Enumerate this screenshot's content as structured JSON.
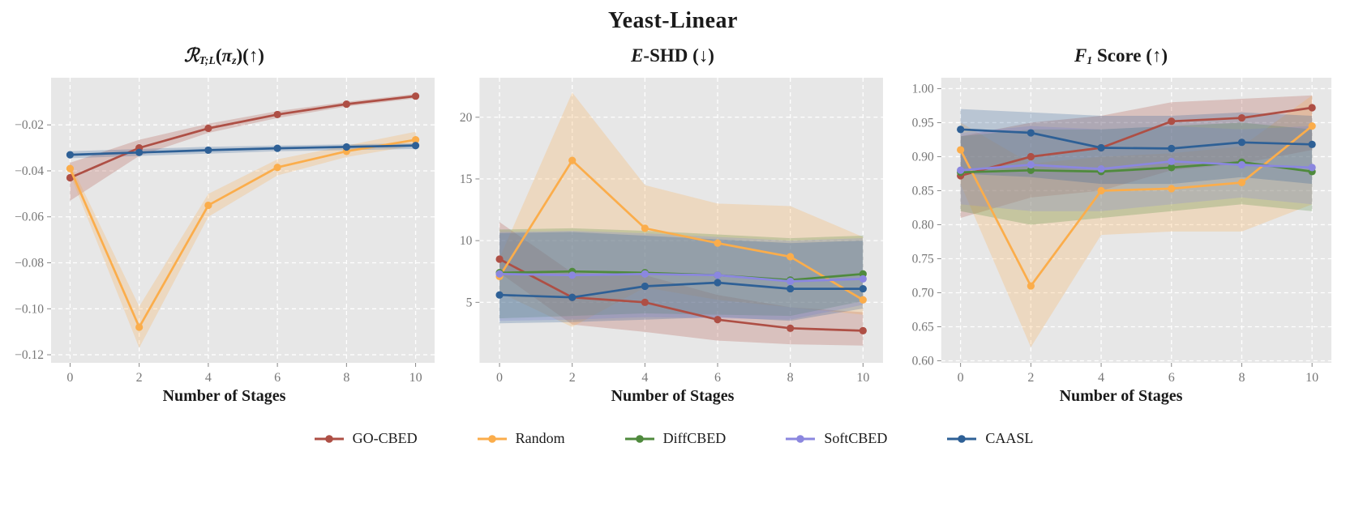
{
  "figure_title": "Yeast-Linear",
  "xlabel": "Number of Stages",
  "colors": {
    "GO-CBED": "#AE4F45",
    "Random": "#FBAD4B",
    "DiffCBED": "#4F8A3D",
    "SoftCBED": "#8B87DF",
    "CAASL": "#2E6096",
    "plot_background": "#E7E7E7",
    "gridline": "#FFFFFF",
    "tick_text": "#777777"
  },
  "legend": [
    {
      "label": "GO-CBED",
      "color": "#AE4F45"
    },
    {
      "label": "Random",
      "color": "#FBAD4B"
    },
    {
      "label": "DiffCBED",
      "color": "#4F8A3D"
    },
    {
      "label": "SoftCBED",
      "color": "#8B87DF"
    },
    {
      "label": "CAASL",
      "color": "#2E6096"
    }
  ],
  "chart_data": [
    {
      "type": "line",
      "id": "reward",
      "title_plain": "R_{T;L}(pi_z)(up)",
      "title_segments": [
        {
          "t": "ℛ",
          "cls": "it"
        },
        {
          "t": "T;L",
          "cls": "sub"
        },
        {
          "t": "(",
          "cls": ""
        },
        {
          "t": "π",
          "cls": "it"
        },
        {
          "t": "z",
          "cls": "sub"
        },
        {
          "t": ")(↑)",
          "cls": ""
        }
      ],
      "xlabel": "Number of Stages",
      "x": [
        0,
        2,
        4,
        6,
        8,
        10
      ],
      "xlim": [
        -0.55,
        10.55
      ],
      "ylim": [
        -0.1235,
        0.0005
      ],
      "xticks": [
        {
          "v": 0,
          "label": "0"
        },
        {
          "v": 2,
          "label": "2"
        },
        {
          "v": 4,
          "label": "4"
        },
        {
          "v": 6,
          "label": "6"
        },
        {
          "v": 8,
          "label": "8"
        },
        {
          "v": 10,
          "label": "10"
        }
      ],
      "yticks": [
        {
          "v": -0.02,
          "label": "−0.02"
        },
        {
          "v": -0.04,
          "label": "−0.04"
        },
        {
          "v": -0.06,
          "label": "−0.06"
        },
        {
          "v": -0.08,
          "label": "−0.08"
        },
        {
          "v": -0.1,
          "label": "−0.10"
        },
        {
          "v": -0.12,
          "label": "−0.12"
        }
      ],
      "series": [
        {
          "name": "GO-CBED",
          "color": "#AE4F45",
          "values": [
            -0.043,
            -0.03,
            -0.0215,
            -0.0155,
            -0.011,
            -0.0075
          ],
          "band_lower": [
            -0.053,
            -0.0335,
            -0.0235,
            -0.017,
            -0.012,
            -0.0085
          ],
          "band_upper": [
            -0.0365,
            -0.0265,
            -0.0195,
            -0.014,
            -0.01,
            -0.0065
          ]
        },
        {
          "name": "Random",
          "color": "#FBAD4B",
          "values": [
            -0.039,
            -0.108,
            -0.055,
            -0.0385,
            -0.0315,
            -0.0265
          ],
          "band_lower": [
            -0.0415,
            -0.117,
            -0.06,
            -0.042,
            -0.034,
            -0.029
          ],
          "band_upper": [
            -0.0365,
            -0.099,
            -0.05,
            -0.035,
            -0.029,
            -0.023
          ]
        },
        {
          "name": "CAASL",
          "color": "#2E6096",
          "values": [
            -0.033,
            -0.032,
            -0.031,
            -0.0302,
            -0.0296,
            -0.029
          ],
          "band_lower": [
            -0.0345,
            -0.0335,
            -0.0325,
            -0.0315,
            -0.031,
            -0.0305
          ],
          "band_upper": [
            -0.0315,
            -0.0305,
            -0.0295,
            -0.029,
            -0.0285,
            -0.028
          ]
        }
      ]
    },
    {
      "type": "line",
      "id": "eshd",
      "title_plain": "E-SHD (down)",
      "title_segments": [
        {
          "t": "E",
          "cls": "it"
        },
        {
          "t": "-SHD (↓)",
          "cls": ""
        }
      ],
      "xlabel": "Number of Stages",
      "x": [
        0,
        2,
        4,
        6,
        8,
        10
      ],
      "xlim": [
        -0.55,
        10.55
      ],
      "ylim": [
        0.1,
        23.2
      ],
      "xticks": [
        {
          "v": 0,
          "label": "0"
        },
        {
          "v": 2,
          "label": "2"
        },
        {
          "v": 4,
          "label": "4"
        },
        {
          "v": 6,
          "label": "6"
        },
        {
          "v": 8,
          "label": "8"
        },
        {
          "v": 10,
          "label": "10"
        }
      ],
      "yticks": [
        {
          "v": 20,
          "label": "20"
        },
        {
          "v": 15,
          "label": "15"
        },
        {
          "v": 10,
          "label": "10"
        },
        {
          "v": 5,
          "label": "5"
        }
      ],
      "series": [
        {
          "name": "GO-CBED",
          "color": "#AE4F45",
          "values": [
            8.5,
            5.4,
            5.0,
            3.6,
            2.9,
            2.7
          ],
          "band_lower": [
            7.4,
            3.2,
            2.6,
            1.9,
            1.6,
            1.5
          ],
          "band_upper": [
            11.5,
            7.4,
            7.2,
            5.6,
            4.6,
            4.2
          ]
        },
        {
          "name": "Random",
          "color": "#FBAD4B",
          "values": [
            7.1,
            16.5,
            11.0,
            9.8,
            8.7,
            5.2
          ],
          "band_lower": [
            5.8,
            3.0,
            6.2,
            5.2,
            4.6,
            4.0
          ],
          "band_upper": [
            8.6,
            22.0,
            14.5,
            13.0,
            12.8,
            10.3
          ]
        },
        {
          "name": "DiffCBED",
          "color": "#4F8A3D",
          "values": [
            7.4,
            7.5,
            7.4,
            7.2,
            6.8,
            7.3
          ],
          "band_lower": [
            3.7,
            3.9,
            4.1,
            4.0,
            3.9,
            5.1
          ],
          "band_upper": [
            10.9,
            11.0,
            10.8,
            10.5,
            10.2,
            10.4
          ]
        },
        {
          "name": "SoftCBED",
          "color": "#8B87DF",
          "values": [
            7.3,
            7.2,
            7.3,
            7.2,
            6.7,
            6.9
          ],
          "band_lower": [
            3.5,
            3.6,
            3.8,
            3.7,
            3.6,
            4.8
          ],
          "band_upper": [
            10.7,
            10.8,
            10.6,
            10.3,
            10.0,
            10.2
          ]
        },
        {
          "name": "CAASL",
          "color": "#2E6096",
          "values": [
            5.6,
            5.4,
            6.3,
            6.6,
            6.1,
            6.1
          ],
          "band_lower": [
            3.3,
            3.4,
            3.6,
            3.8,
            3.5,
            4.5
          ],
          "band_upper": [
            10.6,
            10.7,
            10.4,
            10.1,
            9.8,
            10.0
          ]
        }
      ]
    },
    {
      "type": "line",
      "id": "f1",
      "title_plain": "F_1 Score (up)",
      "title_segments": [
        {
          "t": "F",
          "cls": "it"
        },
        {
          "t": "1",
          "cls": "sub"
        },
        {
          "t": " Score (↑)",
          "cls": ""
        }
      ],
      "xlabel": "Number of Stages",
      "x": [
        0,
        2,
        4,
        6,
        8,
        10
      ],
      "xlim": [
        -0.55,
        10.55
      ],
      "ylim": [
        0.597,
        1.016
      ],
      "xticks": [
        {
          "v": 0,
          "label": "0"
        },
        {
          "v": 2,
          "label": "2"
        },
        {
          "v": 4,
          "label": "4"
        },
        {
          "v": 6,
          "label": "6"
        },
        {
          "v": 8,
          "label": "8"
        },
        {
          "v": 10,
          "label": "10"
        }
      ],
      "yticks": [
        {
          "v": 1.0,
          "label": "1.00"
        },
        {
          "v": 0.95,
          "label": "0.95"
        },
        {
          "v": 0.9,
          "label": "0.90"
        },
        {
          "v": 0.85,
          "label": "0.85"
        },
        {
          "v": 0.8,
          "label": "0.80"
        },
        {
          "v": 0.75,
          "label": "0.75"
        },
        {
          "v": 0.7,
          "label": "0.70"
        },
        {
          "v": 0.65,
          "label": "0.65"
        },
        {
          "v": 0.6,
          "label": "0.60"
        }
      ],
      "series": [
        {
          "name": "GO-CBED",
          "color": "#AE4F45",
          "values": [
            0.872,
            0.9,
            0.913,
            0.952,
            0.957,
            0.972
          ],
          "band_lower": [
            0.81,
            0.84,
            0.85,
            0.88,
            0.89,
            0.91
          ],
          "band_upper": [
            0.93,
            0.95,
            0.96,
            0.98,
            0.985,
            0.99
          ]
        },
        {
          "name": "Random",
          "color": "#FBAD4B",
          "values": [
            0.91,
            0.71,
            0.85,
            0.853,
            0.862,
            0.945
          ],
          "band_lower": [
            0.86,
            0.62,
            0.785,
            0.79,
            0.79,
            0.83
          ],
          "band_upper": [
            0.95,
            0.89,
            0.9,
            0.905,
            0.915,
            0.99
          ]
        },
        {
          "name": "DiffCBED",
          "color": "#4F8A3D",
          "values": [
            0.877,
            0.88,
            0.878,
            0.884,
            0.892,
            0.878
          ],
          "band_lower": [
            0.82,
            0.8,
            0.81,
            0.82,
            0.83,
            0.82
          ],
          "band_upper": [
            0.93,
            0.94,
            0.94,
            0.945,
            0.95,
            0.94
          ]
        },
        {
          "name": "SoftCBED",
          "color": "#8B87DF",
          "values": [
            0.88,
            0.888,
            0.882,
            0.893,
            0.888,
            0.884
          ],
          "band_lower": [
            0.83,
            0.82,
            0.82,
            0.83,
            0.84,
            0.83
          ],
          "band_upper": [
            0.935,
            0.945,
            0.94,
            0.945,
            0.94,
            0.945
          ]
        },
        {
          "name": "CAASL",
          "color": "#2E6096",
          "values": [
            0.94,
            0.935,
            0.913,
            0.912,
            0.921,
            0.918
          ],
          "band_lower": [
            0.875,
            0.87,
            0.86,
            0.86,
            0.87,
            0.86
          ],
          "band_upper": [
            0.97,
            0.965,
            0.96,
            0.96,
            0.965,
            0.96
          ]
        }
      ]
    }
  ]
}
